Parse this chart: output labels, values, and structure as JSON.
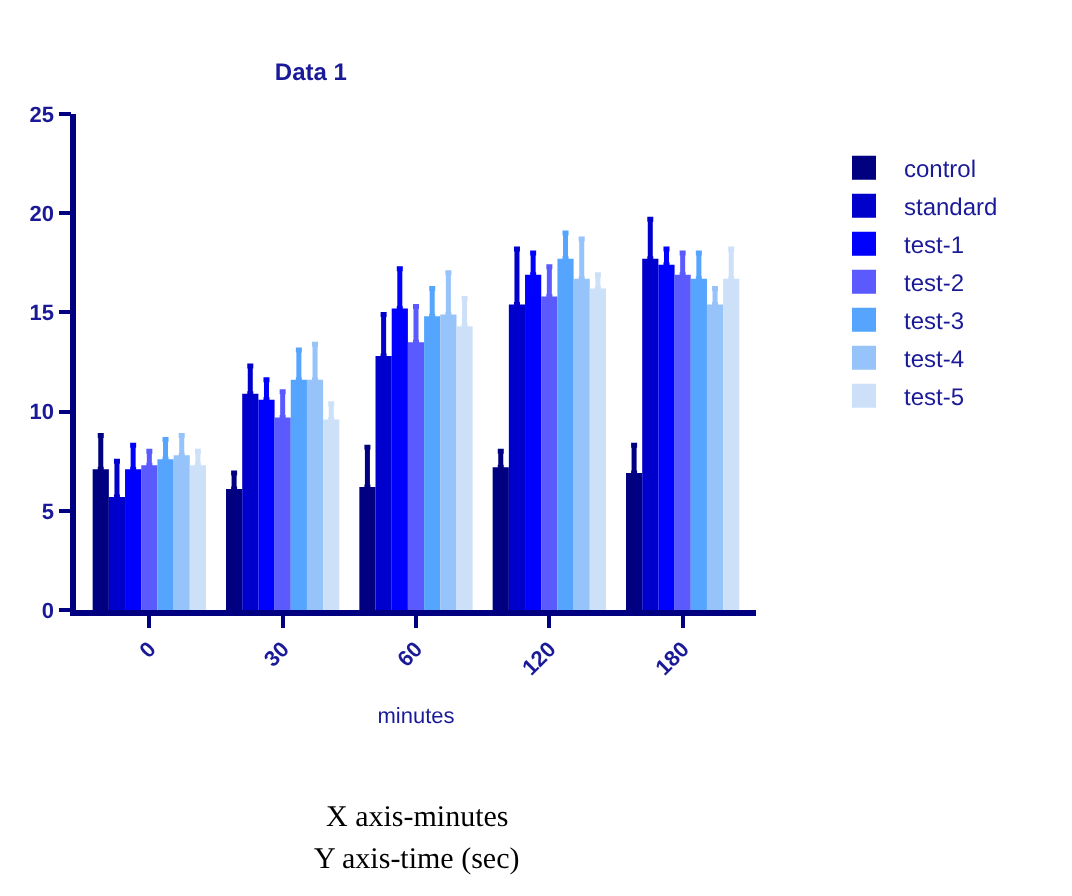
{
  "chart_data": {
    "type": "bar",
    "title": "Data 1",
    "xlabel": "minutes",
    "categories": [
      "0",
      "30",
      "60",
      "120",
      "180"
    ],
    "ylim": [
      0,
      25
    ],
    "yticks": [
      0,
      5,
      10,
      15,
      20,
      25
    ],
    "legend": "right",
    "annotations": [
      "X axis-minutes",
      "Y axis-time (sec)"
    ],
    "series": [
      {
        "name": "control",
        "color": "#000080",
        "values": [
          7.1,
          6.1,
          6.2,
          7.2,
          6.9
        ],
        "errors": [
          [
            7.1,
            8.8
          ],
          [
            6.1,
            6.9
          ],
          [
            6.2,
            8.2
          ],
          [
            7.2,
            8.0
          ],
          [
            6.9,
            8.3
          ]
        ]
      },
      {
        "name": "standard",
        "color": "#0000cc",
        "values": [
          5.7,
          10.9,
          12.8,
          15.4,
          17.7
        ],
        "errors": [
          [
            5.7,
            7.5
          ],
          [
            10.9,
            12.3
          ],
          [
            12.8,
            14.9
          ],
          [
            15.4,
            18.2
          ],
          [
            17.7,
            19.7
          ]
        ]
      },
      {
        "name": "test-1",
        "color": "#0000ff",
        "values": [
          7.1,
          10.6,
          15.2,
          16.9,
          17.4
        ],
        "errors": [
          [
            7.1,
            8.3
          ],
          [
            10.6,
            11.6
          ],
          [
            15.2,
            17.2
          ],
          [
            16.9,
            18.0
          ],
          [
            17.4,
            18.2
          ]
        ]
      },
      {
        "name": "test-2",
        "color": "#5a5aff",
        "values": [
          7.3,
          9.7,
          13.5,
          15.8,
          16.9
        ],
        "errors": [
          [
            7.3,
            8.0
          ],
          [
            9.7,
            11.0
          ],
          [
            13.5,
            15.3
          ],
          [
            15.8,
            17.3
          ],
          [
            16.9,
            18.0
          ]
        ]
      },
      {
        "name": "test-3",
        "color": "#55a5ff",
        "values": [
          7.6,
          11.6,
          14.8,
          17.7,
          16.7
        ],
        "errors": [
          [
            7.6,
            8.6
          ],
          [
            11.6,
            13.1
          ],
          [
            14.8,
            16.2
          ],
          [
            17.7,
            19.0
          ],
          [
            16.7,
            18.0
          ]
        ]
      },
      {
        "name": "test-4",
        "color": "#96c3fa",
        "values": [
          7.8,
          11.6,
          14.9,
          16.7,
          15.4
        ],
        "errors": [
          [
            7.8,
            8.8
          ],
          [
            11.6,
            13.4
          ],
          [
            14.9,
            17.0
          ],
          [
            16.7,
            18.7
          ],
          [
            15.4,
            16.2
          ]
        ]
      },
      {
        "name": "test-5",
        "color": "#cce0f8",
        "values": [
          7.3,
          9.6,
          14.3,
          16.2,
          16.7
        ],
        "errors": [
          [
            7.3,
            8.0
          ],
          [
            9.6,
            10.4
          ],
          [
            14.3,
            15.7
          ],
          [
            16.2,
            16.9
          ],
          [
            16.7,
            18.2
          ]
        ]
      }
    ]
  }
}
